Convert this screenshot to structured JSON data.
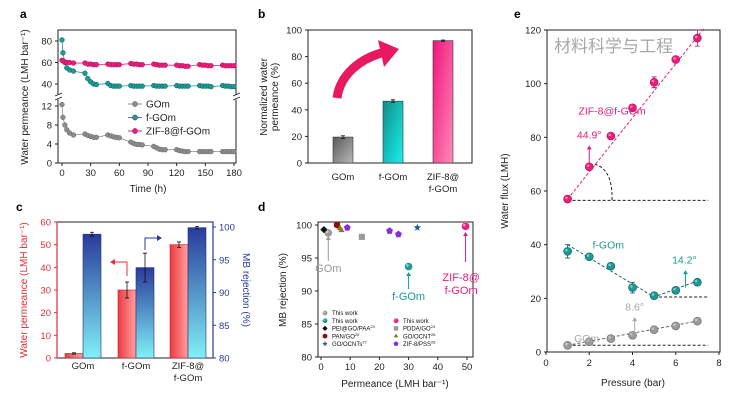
{
  "panel_labels": [
    "a",
    "b",
    "c",
    "d",
    "e"
  ],
  "watermark": "材料科学与工程",
  "chart_data": [
    {
      "panel": "a",
      "type": "line",
      "xlabel": "Time (h)",
      "ylabel": "Water permeance (LMH bar⁻¹)",
      "xlim": [
        0,
        180
      ],
      "xticks": [
        0,
        30,
        60,
        90,
        120,
        150,
        180
      ],
      "y_axis_break": true,
      "ylim_lower": [
        0,
        14
      ],
      "ylim_upper": [
        28,
        90
      ],
      "yticks_lower": [
        0,
        4,
        8,
        12
      ],
      "yticks_upper": [
        40,
        60,
        80
      ],
      "legend_position": "center-right",
      "x": [
        0,
        1,
        3,
        5,
        8,
        12,
        24,
        27,
        30,
        33,
        36,
        48,
        51,
        54,
        57,
        60,
        72,
        75,
        78,
        81,
        84,
        96,
        99,
        102,
        105,
        108,
        120,
        123,
        126,
        129,
        132,
        144,
        147,
        150,
        153,
        156,
        168,
        171,
        174,
        177,
        180
      ],
      "series": [
        {
          "name": "GOm",
          "color": "#8c8c8c",
          "edge": "#666666",
          "y": [
            12.3,
            9.6,
            8,
            7,
            6.3,
            5.9,
            6.1,
            5.8,
            5.6,
            5.4,
            5.4,
            5.9,
            5.7,
            5.5,
            5.4,
            5.3,
            4.4,
            4.1,
            3.9,
            3.9,
            3.8,
            3.5,
            3.2,
            2.9,
            2.8,
            2.8,
            2.8,
            2.6,
            2.5,
            2.4,
            2.4,
            2.4,
            2.4,
            2.4,
            2.4,
            2.4,
            2.4,
            2.4,
            2.4,
            2.4,
            2.4
          ]
        },
        {
          "name": "f-GOm",
          "color": "#1a9a94",
          "edge": "#0e5f5c",
          "y": [
            81,
            69,
            60,
            55,
            53,
            52,
            50,
            45,
            42,
            40,
            39.5,
            40.5,
            38.5,
            38,
            38,
            38,
            38.5,
            38,
            38,
            38,
            38,
            38.5,
            38,
            38,
            38,
            38,
            38.5,
            38,
            38,
            38,
            38,
            38.5,
            38,
            38,
            38,
            37.5,
            38.5,
            38,
            38,
            37.5,
            37.5
          ]
        },
        {
          "name": "ZIF-8@f-GOm",
          "color": "#ea1c7c",
          "edge": "#a8104f",
          "y": [
            62,
            61.5,
            60.5,
            60,
            60,
            59.5,
            59.5,
            58.5,
            58.5,
            58,
            58,
            58.5,
            58,
            58,
            58,
            58,
            59,
            58.5,
            58.5,
            58,
            58,
            58.5,
            58,
            57.5,
            57.5,
            57.5,
            57.5,
            57,
            57,
            56.5,
            56.5,
            58,
            57.5,
            57.5,
            57,
            57,
            57.5,
            57,
            57,
            57,
            57
          ]
        }
      ]
    },
    {
      "panel": "b",
      "type": "bar",
      "ylabel_lines": [
        "Normalized water",
        "permeance (%)"
      ],
      "ylim": [
        0,
        100
      ],
      "yticks": [
        0,
        20,
        40,
        60,
        80,
        100
      ],
      "categories": [
        [
          "GOm"
        ],
        [
          "f-GOm"
        ],
        [
          "ZIF-8@",
          "f-GOm"
        ]
      ],
      "values": [
        19.5,
        46.5,
        92
      ],
      "errors": [
        1,
        1,
        0.5
      ],
      "colors": [
        [
          "#5a5a5a",
          "#b8b8b8"
        ],
        [
          "#0e8f86",
          "#19f0ee"
        ],
        [
          "#f0157a",
          "#ff8ab8"
        ]
      ],
      "arrow_color": "#e8195f"
    },
    {
      "panel": "c",
      "type": "bar",
      "ylabel_left": "Water permeance (LMH bar⁻¹)",
      "ylabel_right": "MB rejection (%)",
      "left_color": "#e0303a",
      "right_color": "#2a3a9a",
      "ylim_left": [
        0,
        60
      ],
      "yticks_left": [
        0,
        10,
        20,
        30,
        40,
        50,
        60
      ],
      "ylim_right": [
        80,
        100
      ],
      "yticks_right": [
        80,
        85,
        90,
        95,
        100
      ],
      "categories": [
        [
          "GOm"
        ],
        [
          "f-GOm"
        ],
        [
          "ZIF-8@",
          "f-GOm"
        ]
      ],
      "series": [
        {
          "axis": "left",
          "values": [
            2,
            30,
            50
          ],
          "errors": [
            0.3,
            3.5,
            1.2
          ]
        },
        {
          "axis": "right",
          "values": [
            98.9,
            93.8,
            99.9
          ],
          "errors": [
            0.3,
            2.2,
            0.2
          ]
        }
      ]
    },
    {
      "panel": "d",
      "type": "scatter",
      "xlabel": "Permeance (LMH bar⁻¹)",
      "ylabel": "MB rejection (%)",
      "xlim": [
        -1,
        52
      ],
      "xticks": [
        0,
        10,
        20,
        30,
        40,
        50
      ],
      "ylim": [
        80,
        100.5
      ],
      "yticks": [
        80,
        85,
        90,
        95,
        100
      ],
      "legend_position": "bottom-left",
      "series": [
        {
          "name": "This work",
          "marker": "circle",
          "color": "#9a9a9a",
          "points": [
            [
              2.5,
              98.8
            ]
          ],
          "annotation": "GOm"
        },
        {
          "name": "This work",
          "marker": "circle",
          "color": "#1a9a94",
          "points": [
            [
              30,
              93.7
            ]
          ],
          "annotation": "f-GOm"
        },
        {
          "name": "This work",
          "marker": "circle",
          "color": "#ea1c7c",
          "points": [
            [
              49.5,
              99.8
            ]
          ],
          "annotation": "ZIF-8@\nf-GOm"
        },
        {
          "name": "PEI@GO/PAA",
          "ref": "23",
          "marker": "diamond",
          "color": "#111111",
          "points": [
            [
              1,
              99.3
            ]
          ]
        },
        {
          "name": "PDDA/GO",
          "ref": "24",
          "marker": "square",
          "color": "#9a9a9a",
          "points": [
            [
              14,
              98.2
            ]
          ]
        },
        {
          "name": "PAN/GO",
          "ref": "25",
          "marker": "hexagon",
          "color": "#8a1010",
          "points": [
            [
              5.5,
              100
            ]
          ]
        },
        {
          "name": "GO/OCNT",
          "ref": "26",
          "marker": "triangle",
          "color": "#8a7a20",
          "points": [
            [
              7,
              99.2
            ],
            [
              6.5,
              99.5
            ]
          ]
        },
        {
          "name": "GO/OCNTs",
          "ref": "27",
          "marker": "star",
          "color": "#1e5a8a",
          "points": [
            [
              33,
              99.6
            ]
          ]
        },
        {
          "name": "ZIF-8/PSS",
          "ref": "28",
          "marker": "pentagon",
          "color": "#8a2be2",
          "points": [
            [
              9,
              99.6
            ],
            [
              23.5,
              99.1
            ],
            [
              26.5,
              98.6
            ]
          ]
        }
      ]
    },
    {
      "panel": "e",
      "type": "scatter",
      "xlabel": "Pressure (bar)",
      "ylabel": "Water flux (LMH)",
      "xlim": [
        0,
        8
      ],
      "xticks": [
        0,
        2,
        4,
        6,
        8
      ],
      "ylim": [
        0,
        120
      ],
      "yticks": [
        0,
        20,
        40,
        60,
        80,
        100,
        120
      ],
      "x": [
        1,
        2,
        3,
        4,
        5,
        6,
        7
      ],
      "series": [
        {
          "name": "ZIF-8@f-GOm",
          "color": "#ea1c7c",
          "edge": "#a8104f",
          "y": [
            57,
            69,
            80.5,
            91,
            100.5,
            109,
            117
          ],
          "errors": [
            0.8,
            1,
            0.8,
            0.8,
            2,
            1,
            3
          ],
          "angle": "44.9°"
        },
        {
          "name": "f-GOm",
          "color": "#1a9a94",
          "edge": "#0e5f5c",
          "y": [
            37.5,
            35.5,
            32,
            24,
            21,
            23,
            26
          ],
          "errors": [
            2.5,
            1,
            0.8,
            2,
            1,
            1,
            1
          ],
          "angle": "14.2°"
        },
        {
          "name": "GOm",
          "color": "#9a9a9a",
          "edge": "#707070",
          "y": [
            2.5,
            3.8,
            5,
            6.2,
            8.3,
            9.7,
            11.5
          ],
          "errors": [
            0.5,
            0.5,
            0.5,
            0.5,
            0.5,
            0.5,
            0.5
          ],
          "angle": "8.6°"
        }
      ]
    }
  ]
}
